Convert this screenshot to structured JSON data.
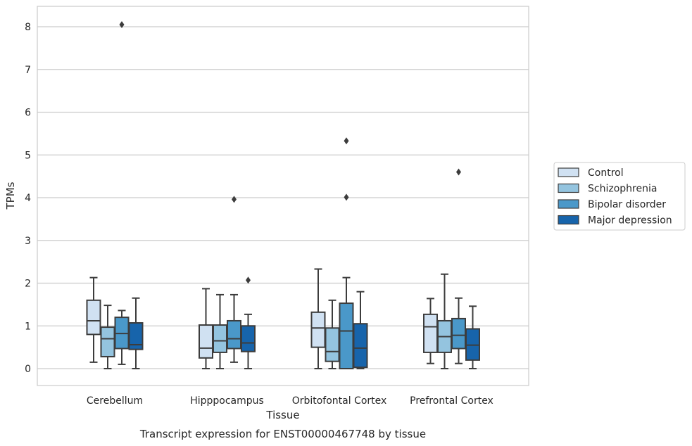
{
  "chart_data": {
    "type": "box",
    "title": "",
    "caption": "Transcript expression for ENST00000467748 by tissue",
    "xlabel": "Tissue",
    "ylabel": "TPMs",
    "ylim": [
      -0.4,
      8.5
    ],
    "yticks": [
      0,
      1,
      2,
      3,
      4,
      5,
      6,
      7,
      8
    ],
    "grid": "horizontal",
    "legend_position": "right",
    "categories": [
      "Cerebellum",
      "Hipppocampus",
      "Orbitofontal Cortex",
      "Prefrontal Cortex"
    ],
    "series": [
      {
        "name": "Control",
        "color": "#d0e1f2",
        "boxes": [
          {
            "whislo": 0.15,
            "q1": 0.8,
            "med": 1.12,
            "q3": 1.6,
            "whishi": 2.13,
            "fliers": []
          },
          {
            "whislo": 0.0,
            "q1": 0.25,
            "med": 0.48,
            "q3": 1.02,
            "whishi": 1.87,
            "fliers": []
          },
          {
            "whislo": 0.0,
            "q1": 0.5,
            "med": 0.95,
            "q3": 1.32,
            "whishi": 2.33,
            "fliers": []
          },
          {
            "whislo": 0.12,
            "q1": 0.38,
            "med": 0.98,
            "q3": 1.27,
            "whishi": 1.64,
            "fliers": []
          }
        ]
      },
      {
        "name": "Schizophrenia",
        "color": "#94c4df",
        "boxes": [
          {
            "whislo": 0.0,
            "q1": 0.28,
            "med": 0.7,
            "q3": 0.97,
            "whishi": 1.48,
            "fliers": []
          },
          {
            "whislo": 0.0,
            "q1": 0.38,
            "med": 0.65,
            "q3": 1.02,
            "whishi": 1.73,
            "fliers": []
          },
          {
            "whislo": 0.0,
            "q1": 0.17,
            "med": 0.4,
            "q3": 0.95,
            "whishi": 1.6,
            "fliers": []
          },
          {
            "whislo": 0.0,
            "q1": 0.38,
            "med": 0.75,
            "q3": 1.12,
            "whishi": 2.21,
            "fliers": []
          }
        ]
      },
      {
        "name": "Bipolar disorder",
        "color": "#4a98c9",
        "boxes": [
          {
            "whislo": 0.1,
            "q1": 0.47,
            "med": 0.82,
            "q3": 1.2,
            "whishi": 1.36,
            "fliers": [
              8.05
            ]
          },
          {
            "whislo": 0.15,
            "q1": 0.47,
            "med": 0.7,
            "q3": 1.12,
            "whishi": 1.73,
            "fliers": [
              3.96
            ]
          },
          {
            "whislo": 0.0,
            "q1": 0.0,
            "med": 0.88,
            "q3": 1.53,
            "whishi": 2.13,
            "fliers": [
              5.33,
              4.01
            ]
          },
          {
            "whislo": 0.12,
            "q1": 0.47,
            "med": 0.78,
            "q3": 1.17,
            "whishi": 1.65,
            "fliers": [
              4.6
            ]
          }
        ]
      },
      {
        "name": "Major depression",
        "color": "#1764ab",
        "boxes": [
          {
            "whislo": 0.0,
            "q1": 0.45,
            "med": 0.56,
            "q3": 1.07,
            "whishi": 1.65,
            "fliers": []
          },
          {
            "whislo": 0.0,
            "q1": 0.4,
            "med": 0.6,
            "q3": 1.0,
            "whishi": 1.27,
            "fliers": [
              2.07
            ]
          },
          {
            "whislo": 0.0,
            "q1": 0.03,
            "med": 0.48,
            "q3": 1.05,
            "whishi": 1.8,
            "fliers": []
          },
          {
            "whislo": 0.0,
            "q1": 0.2,
            "med": 0.55,
            "q3": 0.93,
            "whishi": 1.46,
            "fliers": []
          }
        ]
      }
    ]
  }
}
